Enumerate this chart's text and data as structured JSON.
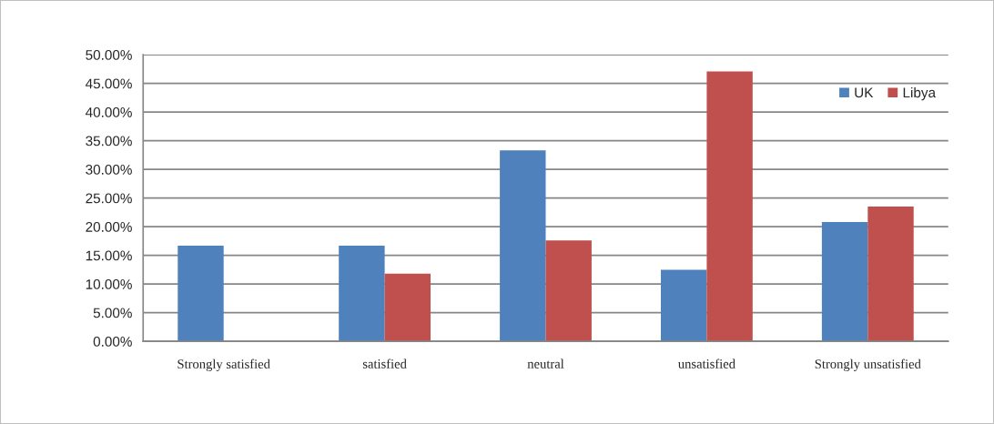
{
  "chart_data": {
    "type": "bar",
    "categories": [
      "Strongly satisfied",
      "satisfied",
      "neutral",
      "unsatisfied",
      "Strongly unsatisfied"
    ],
    "series": [
      {
        "name": "UK",
        "color": "#4f81bd",
        "values": [
          16.7,
          16.7,
          33.3,
          12.5,
          20.8
        ]
      },
      {
        "name": "Libya",
        "color": "#c0504d",
        "values": [
          0,
          11.8,
          17.6,
          47.1,
          23.5
        ]
      }
    ],
    "ylim": [
      0,
      50
    ],
    "yticks": [
      {
        "value": 0,
        "label": "0.00%"
      },
      {
        "value": 5,
        "label": "5.00%"
      },
      {
        "value": 10,
        "label": "10.00%"
      },
      {
        "value": 15,
        "label": "15.00%"
      },
      {
        "value": 20,
        "label": "20.00%"
      },
      {
        "value": 25,
        "label": "25.00%"
      },
      {
        "value": 30,
        "label": "30.00%"
      },
      {
        "value": 35,
        "label": "35.00%"
      },
      {
        "value": 40,
        "label": "40.00%"
      },
      {
        "value": 45,
        "label": "45.00%"
      },
      {
        "value": 50,
        "label": "50.00%"
      }
    ],
    "grid": "y",
    "legend": "top right"
  }
}
